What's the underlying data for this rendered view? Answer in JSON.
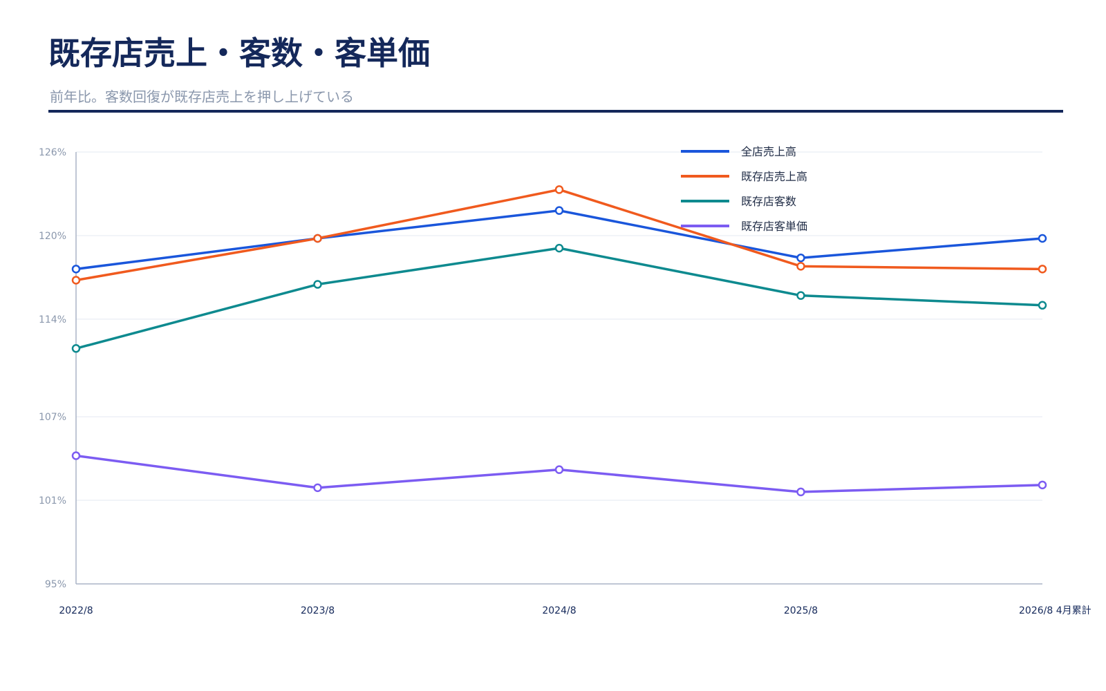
{
  "header": {
    "title": "既存店売上・客数・客単価",
    "subtitle": "前年比。客数回復が既存店売上を押し上げている"
  },
  "chart_data": {
    "type": "line",
    "categories": [
      "2022/8",
      "2023/8",
      "2024/8",
      "2025/8",
      "2026/8 4月累計"
    ],
    "ylim": [
      95,
      126
    ],
    "yticks": [
      95,
      101,
      107,
      114,
      120,
      126
    ],
    "ytick_labels": [
      "95%",
      "101%",
      "107%",
      "114%",
      "120%",
      "126%"
    ],
    "grid": true,
    "legend_position": "top-right",
    "series": [
      {
        "name": "全店売上高",
        "color": "#1a56db",
        "values": [
          117.6,
          119.8,
          121.8,
          118.4,
          119.8
        ]
      },
      {
        "name": "既存店売上高",
        "color": "#f05a1e",
        "values": [
          116.8,
          119.8,
          123.3,
          117.8,
          117.6
        ]
      },
      {
        "name": "既存店客数",
        "color": "#0e8a8f",
        "values": [
          111.9,
          116.5,
          119.1,
          115.7,
          115.0
        ]
      },
      {
        "name": "既存店客単価",
        "color": "#7c5cf2",
        "values": [
          104.2,
          101.9,
          103.2,
          101.6,
          102.1
        ]
      }
    ]
  }
}
